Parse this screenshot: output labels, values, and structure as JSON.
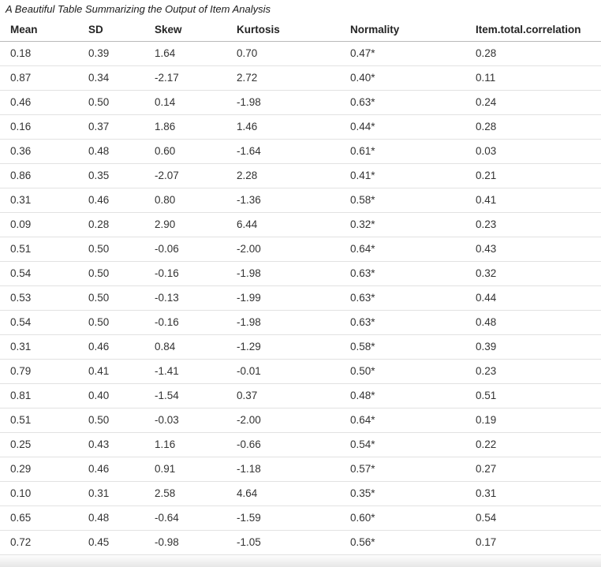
{
  "colors": {
    "background": "#ffffff",
    "title_text": "#1b1b1b",
    "header_text": "#242424",
    "cell_text": "#333333",
    "header_border": "#b9b9b9",
    "row_border": "#e2e2e2",
    "bottom_fade": "#e6e6e6"
  },
  "chart_data": {
    "type": "table",
    "title": "A Beautiful Table Summarizing the Output of Item Analysis",
    "columns": [
      "Mean",
      "SD",
      "Skew",
      "Kurtosis",
      "Normality",
      "Item.total.correlation"
    ],
    "rows": [
      [
        "0.18",
        "0.39",
        "1.64",
        "0.70",
        "0.47*",
        "0.28"
      ],
      [
        "0.87",
        "0.34",
        "-2.17",
        "2.72",
        "0.40*",
        "0.11"
      ],
      [
        "0.46",
        "0.50",
        "0.14",
        "-1.98",
        "0.63*",
        "0.24"
      ],
      [
        "0.16",
        "0.37",
        "1.86",
        "1.46",
        "0.44*",
        "0.28"
      ],
      [
        "0.36",
        "0.48",
        "0.60",
        "-1.64",
        "0.61*",
        "0.03"
      ],
      [
        "0.86",
        "0.35",
        "-2.07",
        "2.28",
        "0.41*",
        "0.21"
      ],
      [
        "0.31",
        "0.46",
        "0.80",
        "-1.36",
        "0.58*",
        "0.41"
      ],
      [
        "0.09",
        "0.28",
        "2.90",
        "6.44",
        "0.32*",
        "0.23"
      ],
      [
        "0.51",
        "0.50",
        "-0.06",
        "-2.00",
        "0.64*",
        "0.43"
      ],
      [
        "0.54",
        "0.50",
        "-0.16",
        "-1.98",
        "0.63*",
        "0.32"
      ],
      [
        "0.53",
        "0.50",
        "-0.13",
        "-1.99",
        "0.63*",
        "0.44"
      ],
      [
        "0.54",
        "0.50",
        "-0.16",
        "-1.98",
        "0.63*",
        "0.48"
      ],
      [
        "0.31",
        "0.46",
        "0.84",
        "-1.29",
        "0.58*",
        "0.39"
      ],
      [
        "0.79",
        "0.41",
        "-1.41",
        "-0.01",
        "0.50*",
        "0.23"
      ],
      [
        "0.81",
        "0.40",
        "-1.54",
        "0.37",
        "0.48*",
        "0.51"
      ],
      [
        "0.51",
        "0.50",
        "-0.03",
        "-2.00",
        "0.64*",
        "0.19"
      ],
      [
        "0.25",
        "0.43",
        "1.16",
        "-0.66",
        "0.54*",
        "0.22"
      ],
      [
        "0.29",
        "0.46",
        "0.91",
        "-1.18",
        "0.57*",
        "0.27"
      ],
      [
        "0.10",
        "0.31",
        "2.58",
        "4.64",
        "0.35*",
        "0.31"
      ],
      [
        "0.65",
        "0.48",
        "-0.64",
        "-1.59",
        "0.60*",
        "0.54"
      ],
      [
        "0.72",
        "0.45",
        "-0.98",
        "-1.05",
        "0.56*",
        "0.17"
      ]
    ],
    "notes": "Asterisk (*) appended to every Normality value as shown on screen"
  }
}
